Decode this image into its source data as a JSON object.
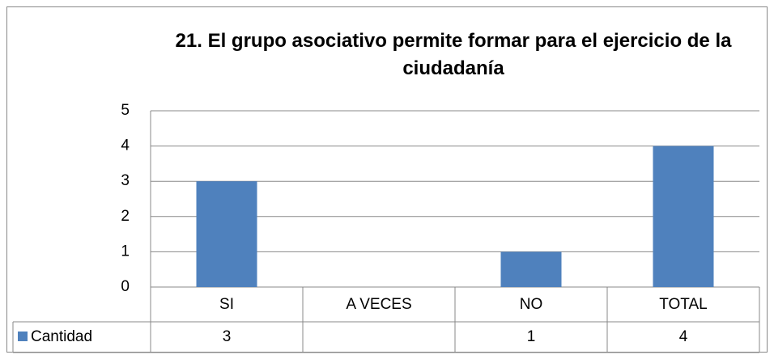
{
  "chart_data": {
    "type": "bar",
    "title": "21. El grupo asociativo permite formar para el ejercicio de la ciudadanía",
    "categories": [
      "SI",
      "A VECES",
      "NO",
      "TOTAL"
    ],
    "series": [
      {
        "name": "Cantidad",
        "color": "#4f81bd",
        "values": [
          3,
          null,
          1,
          4
        ]
      }
    ],
    "ylim": [
      0,
      5
    ],
    "yticks": [
      0,
      1,
      2,
      3,
      4,
      5
    ],
    "grid": true
  }
}
